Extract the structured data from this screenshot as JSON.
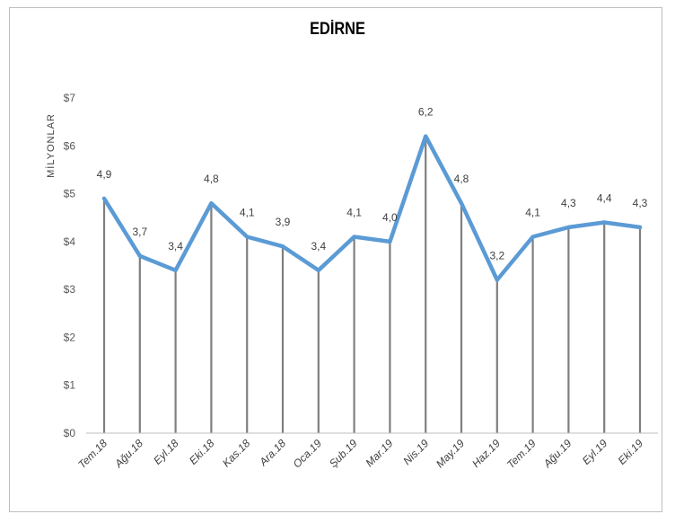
{
  "chart_data": {
    "type": "line",
    "title": "EDİRNE",
    "ylabel": "MİLYONLAR",
    "xlabel": "",
    "categories": [
      "Tem.18",
      "Ağu.18",
      "Eyl.18",
      "Eki.18",
      "Kas.18",
      "Ara.18",
      "Oca.19",
      "Şub.19",
      "Mar.19",
      "Nis.19",
      "May.19",
      "Haz.19",
      "Tem.19",
      "Ağu.19",
      "Eyl.19",
      "Eki.19"
    ],
    "series": [
      {
        "values": [
          4.9,
          3.7,
          3.4,
          4.8,
          4.1,
          3.9,
          3.4,
          4.1,
          4.0,
          6.2,
          4.8,
          3.2,
          4.1,
          4.3,
          4.4,
          4.3
        ],
        "data_labels": [
          "4,9",
          "3,7",
          "3,4",
          "4,8",
          "4,1",
          "3,9",
          "3,4",
          "4,1",
          "4,0",
          "6,2",
          "4,8",
          "3,2",
          "4,1",
          "4,3",
          "4,4",
          "4,3"
        ]
      }
    ],
    "ylim": [
      0,
      7
    ],
    "yticks": [
      0,
      1,
      2,
      3,
      4,
      5,
      6,
      7
    ],
    "ytick_labels": [
      "$0",
      "$1",
      "$2",
      "$3",
      "$4",
      "$5",
      "$6",
      "$7"
    ],
    "drop_lines": true,
    "grid": false,
    "legend": "none",
    "colors": {
      "line": "#5b9bd5",
      "drop_line": "#7f7f7f",
      "axis": "#bfbfbf"
    }
  }
}
